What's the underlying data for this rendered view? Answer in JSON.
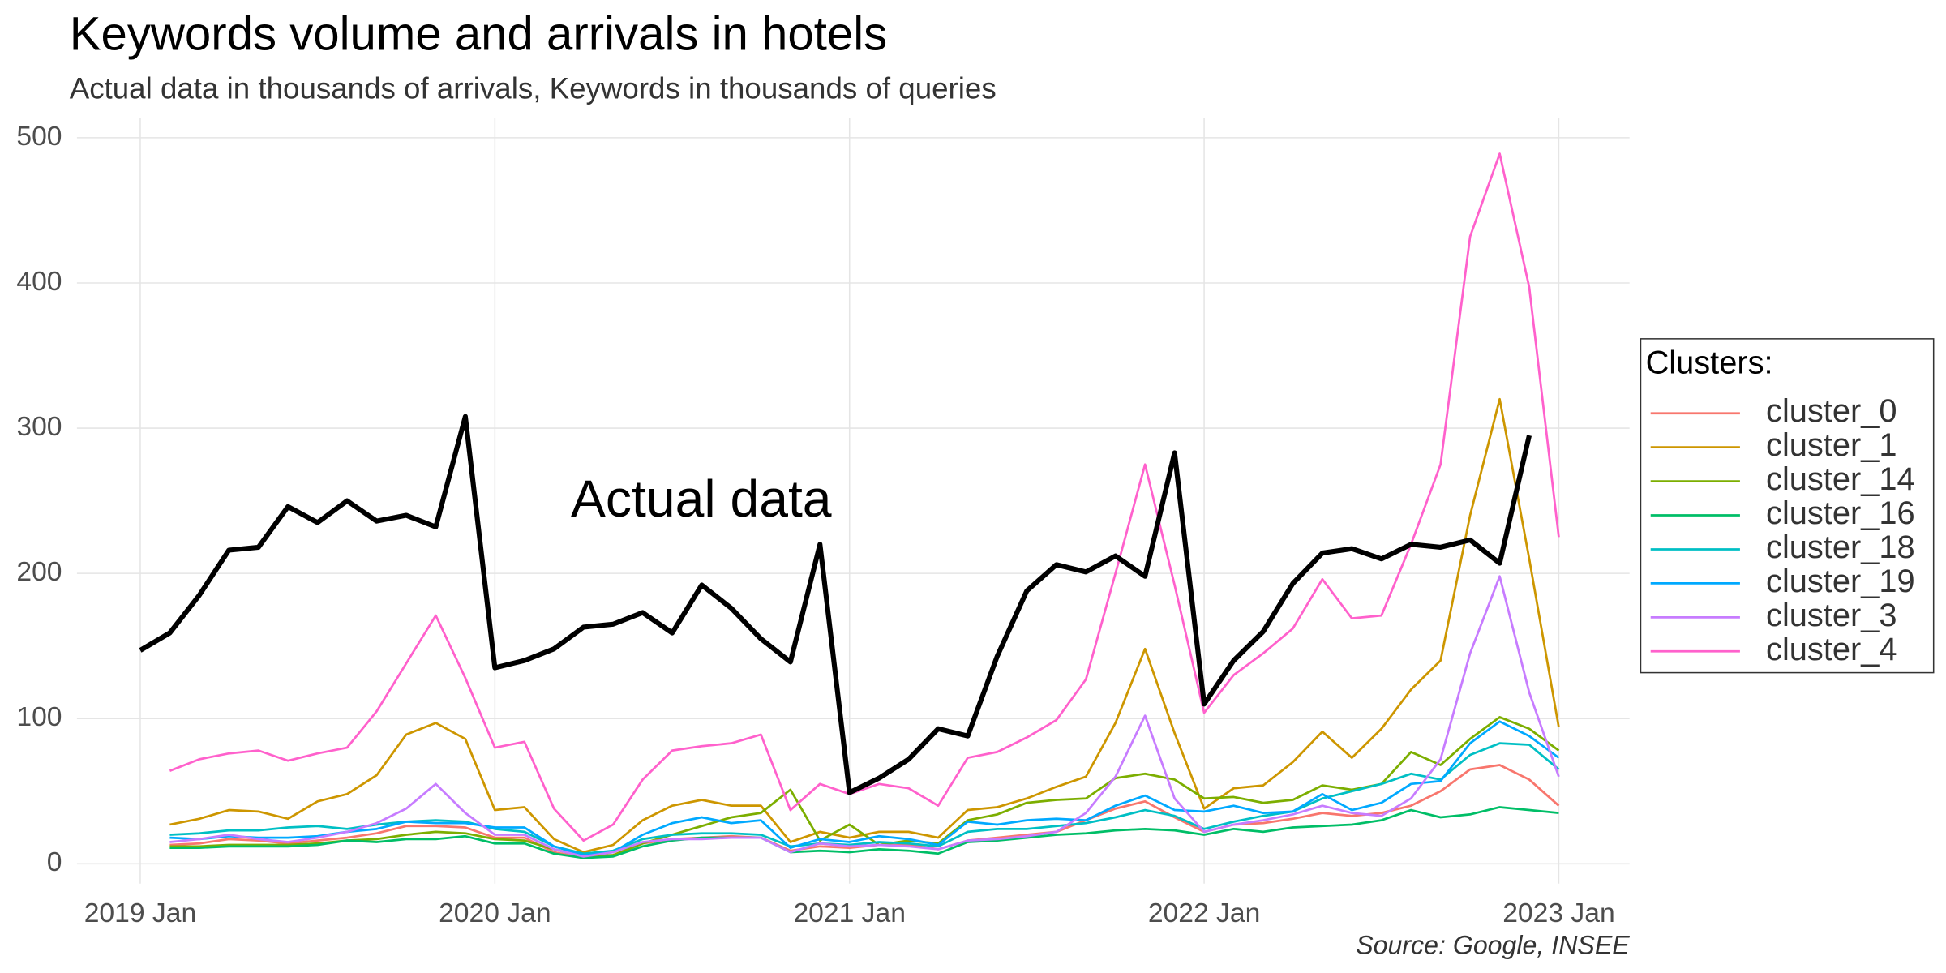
{
  "chart_data": {
    "type": "line",
    "title": "Keywords volume and arrivals in hotels",
    "subtitle": "Actual data in thousands of arrivals, Keywords in thousands of queries",
    "caption": "Source: Google, INSEE",
    "legend_title": "Clusters:",
    "legend": "right",
    "grid": true,
    "categories": [
      "2019 Jan",
      null,
      null,
      null,
      null,
      null,
      null,
      null,
      null,
      null,
      null,
      null,
      "2020 Jan",
      null,
      null,
      null,
      null,
      null,
      null,
      null,
      null,
      null,
      null,
      null,
      "2021 Jan",
      null,
      null,
      null,
      null,
      null,
      null,
      null,
      null,
      null,
      null,
      null,
      "2022 Jan",
      null,
      null,
      null,
      null,
      null,
      null,
      null,
      null,
      null,
      null,
      null,
      "2023 Jan"
    ],
    "ylim": [
      0,
      500
    ],
    "yticks": [
      0,
      100,
      200,
      300,
      400,
      500
    ],
    "actual_data": {
      "name": "Actual data",
      "color": "#000000",
      "values": [
        147,
        159,
        185,
        216,
        218,
        246,
        235,
        250,
        236,
        240,
        232,
        308,
        135,
        140,
        148,
        163,
        165,
        173,
        159,
        192,
        176,
        155,
        139,
        220,
        49,
        59,
        72,
        93,
        88,
        143,
        188,
        206,
        201,
        212,
        198,
        283,
        110,
        140,
        160,
        193,
        214,
        217,
        210,
        220,
        218,
        223,
        207,
        295,
        null
      ]
    },
    "series": [
      {
        "name": "cluster_0",
        "color": "#F8766D",
        "values": [
          null,
          13,
          14,
          17,
          16,
          14,
          16,
          18,
          21,
          26,
          26,
          25,
          18,
          18,
          8,
          4,
          6,
          14,
          17,
          18,
          19,
          18,
          9,
          12,
          11,
          13,
          13,
          10,
          16,
          18,
          20,
          22,
          30,
          38,
          43,
          32,
          22,
          27,
          28,
          31,
          35,
          33,
          35,
          40,
          50,
          65,
          68,
          58,
          40
        ]
      },
      {
        "name": "cluster_1",
        "color": "#CD9600",
        "values": [
          null,
          27,
          31,
          37,
          36,
          31,
          43,
          48,
          61,
          89,
          97,
          86,
          37,
          39,
          17,
          8,
          13,
          30,
          40,
          44,
          40,
          40,
          15,
          22,
          18,
          22,
          22,
          18,
          37,
          39,
          45,
          53,
          60,
          97,
          148,
          90,
          38,
          52,
          54,
          70,
          91,
          73,
          93,
          120,
          140,
          240,
          320,
          210,
          94
        ]
      },
      {
        "name": "cluster_14",
        "color": "#7CAE00",
        "values": [
          null,
          12,
          12,
          13,
          13,
          13,
          14,
          16,
          17,
          20,
          22,
          21,
          17,
          16,
          10,
          5,
          6,
          14,
          20,
          26,
          32,
          35,
          51,
          16,
          27,
          13,
          16,
          14,
          30,
          34,
          42,
          44,
          45,
          59,
          62,
          58,
          45,
          46,
          42,
          44,
          54,
          51,
          55,
          77,
          68,
          86,
          101,
          93,
          78
        ]
      },
      {
        "name": "cluster_16",
        "color": "#00BE67",
        "values": [
          null,
          11,
          11,
          12,
          12,
          12,
          13,
          16,
          15,
          17,
          17,
          19,
          14,
          14,
          7,
          4,
          5,
          12,
          16,
          18,
          18,
          18,
          8,
          9,
          8,
          10,
          9,
          7,
          15,
          16,
          18,
          20,
          21,
          23,
          24,
          23,
          20,
          24,
          22,
          25,
          26,
          27,
          30,
          37,
          32,
          34,
          39,
          37,
          35
        ]
      },
      {
        "name": "cluster_18",
        "color": "#00BFC4",
        "values": [
          null,
          20,
          21,
          23,
          23,
          25,
          26,
          24,
          27,
          29,
          30,
          29,
          24,
          22,
          12,
          7,
          9,
          17,
          20,
          21,
          21,
          20,
          12,
          14,
          13,
          15,
          14,
          12,
          22,
          24,
          24,
          26,
          28,
          32,
          37,
          33,
          24,
          29,
          33,
          36,
          45,
          50,
          55,
          62,
          58,
          75,
          83,
          82,
          65
        ]
      },
      {
        "name": "cluster_19",
        "color": "#00A9FF",
        "values": [
          null,
          18,
          17,
          19,
          18,
          18,
          19,
          22,
          24,
          29,
          28,
          28,
          25,
          25,
          12,
          6,
          8,
          20,
          28,
          32,
          28,
          30,
          11,
          17,
          15,
          19,
          17,
          13,
          29,
          27,
          30,
          31,
          30,
          40,
          47,
          37,
          36,
          40,
          35,
          36,
          48,
          37,
          42,
          55,
          57,
          83,
          98,
          88,
          73
        ]
      },
      {
        "name": "cluster_3",
        "color": "#C77CFF",
        "values": [
          null,
          15,
          17,
          20,
          17,
          15,
          18,
          22,
          28,
          38,
          55,
          35,
          20,
          20,
          10,
          5,
          8,
          15,
          17,
          17,
          18,
          18,
          8,
          14,
          12,
          13,
          12,
          10,
          16,
          17,
          19,
          22,
          35,
          60,
          102,
          45,
          22,
          27,
          30,
          34,
          40,
          35,
          33,
          45,
          72,
          145,
          198,
          118,
          60
        ]
      },
      {
        "name": "cluster_4",
        "color": "#FF61CC",
        "values": [
          null,
          64,
          72,
          76,
          78,
          71,
          76,
          80,
          105,
          138,
          171,
          128,
          80,
          84,
          38,
          16,
          27,
          58,
          78,
          81,
          83,
          89,
          37,
          55,
          48,
          55,
          52,
          40,
          73,
          77,
          87,
          99,
          127,
          200,
          275,
          192,
          104,
          130,
          145,
          162,
          196,
          169,
          171,
          220,
          275,
          432,
          489,
          397,
          225
        ]
      }
    ]
  }
}
